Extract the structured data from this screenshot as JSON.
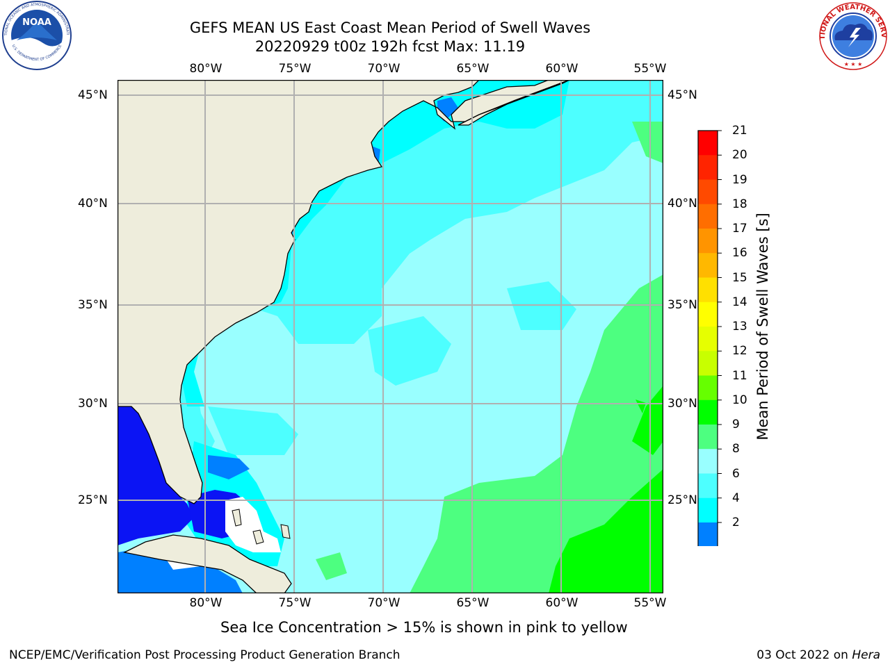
{
  "title": {
    "line1": "GEFS MEAN US East Coast Mean Period of Swell Waves",
    "line2": "20220929 t00z 192h fcst   Max: 11.19"
  },
  "map": {
    "lon_labels": [
      "80°W",
      "75°W",
      "70°W",
      "65°W",
      "60°W",
      "55°W"
    ],
    "lat_labels": [
      "45°N",
      "40°N",
      "35°N",
      "30°N",
      "25°N"
    ],
    "lon_range": [
      "85°W",
      "54°W"
    ],
    "lat_range": [
      "20°N",
      "46°N"
    ],
    "grid": true,
    "colors": {
      "land": "#eeeddc",
      "gulf": "#0b14f4",
      "grid": "#b0b0b0"
    }
  },
  "colorbar": {
    "label": "Mean Period of Swell Waves [s]",
    "ticks": [
      "21",
      "20",
      "19",
      "18",
      "17",
      "16",
      "15",
      "14",
      "13",
      "12",
      "11",
      "10",
      "9",
      "8",
      "6",
      "4",
      "2"
    ],
    "colors": [
      "#ff0000",
      "#ff2400",
      "#ff4a00",
      "#ff6e00",
      "#ff9400",
      "#ffb800",
      "#ffe000",
      "#ffff00",
      "#e6ff00",
      "#c8ff00",
      "#66ff00",
      "#00ff00",
      "#4dff80",
      "#99ffff",
      "#4dffff",
      "#00ffff",
      "#0080ff"
    ],
    "extend_color": "#0000ff"
  },
  "note": "Sea Ice Concentration > 15% is shown in pink to yellow",
  "footer": {
    "left": "NCEP/EMC/Verification Post Processing Product Generation Branch",
    "date": "03 Oct 2022 on ",
    "machine": "Hera"
  },
  "logos": {
    "noaa": {
      "text": "NOAA",
      "ring_top": "NATIONAL OCEANIC AND ATMOSPHERIC ADMINISTRATION",
      "ring_bottom": "U.S. DEPARTMENT OF COMMERCE"
    },
    "nws": {
      "ring": "NATIONAL WEATHER SERVICE"
    }
  }
}
